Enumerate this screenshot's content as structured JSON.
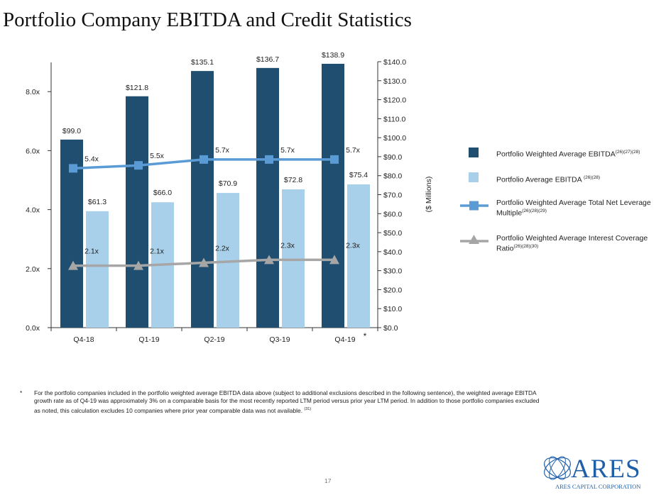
{
  "page": {
    "title": "Portfolio Company EBITDA and Credit Statistics",
    "page_number": "17"
  },
  "colors": {
    "dark_bar": "#1f4e70",
    "light_bar": "#a8d0ea",
    "leverage_line": "#5b9bd5",
    "coverage_line": "#a6a6a6"
  },
  "chart_data": {
    "type": "bar",
    "categories": [
      "Q4-18",
      "Q1-19",
      "Q2-19",
      "Q3-19",
      "Q4-19"
    ],
    "category_note": "*",
    "series": [
      {
        "name": "Portfolio Weighted Average EBITDA",
        "name_sup": "(26)(27)(28)",
        "kind": "bar",
        "axis": "right",
        "values": [
          99.0,
          121.8,
          135.1,
          136.7,
          138.9
        ],
        "labels": [
          "$99.0",
          "$121.8",
          "$135.1",
          "$136.7",
          "$138.9"
        ],
        "color": "#1f4e70"
      },
      {
        "name": "Portfolio Average EBITDA",
        "name_sup": "(26)(28)",
        "kind": "bar",
        "axis": "right",
        "values": [
          61.3,
          66.0,
          70.9,
          72.8,
          75.4
        ],
        "labels": [
          "$61.3",
          "$66.0",
          "$70.9",
          "$72.8",
          "$75.4"
        ],
        "color": "#a8d0ea"
      },
      {
        "name": "Portfolio Weighted Average Total Net Leverage Multiple",
        "name_line1": "Portfolio Weighted Average Total Net Leverage",
        "name_line2": "Multiple",
        "name_sup": "(26)(28)(29)",
        "kind": "line",
        "marker": "square",
        "axis": "left",
        "values": [
          5.4,
          5.5,
          5.7,
          5.7,
          5.7
        ],
        "labels": [
          "5.4x",
          "5.5x",
          "5.7x",
          "5.7x",
          "5.7x"
        ],
        "color": "#5b9bd5"
      },
      {
        "name": "Portfolio Weighted Average Interest Coverage Ratio",
        "name_line1": "Portfolio Weighted Average Interest Coverage",
        "name_line2": "Ratio",
        "name_sup": "(26)(28)(30)",
        "kind": "line",
        "marker": "triangle",
        "axis": "left",
        "values": [
          2.1,
          2.1,
          2.2,
          2.3,
          2.3
        ],
        "labels": [
          "2.1x",
          "2.1x",
          "2.2x",
          "2.3x",
          "2.3x"
        ],
        "color": "#a6a6a6"
      }
    ],
    "left_axis": {
      "min": 0,
      "max": 9,
      "ticks": [
        0,
        2,
        4,
        6,
        8
      ],
      "tick_labels": [
        "0.0x",
        "2.0x",
        "4.0x",
        "6.0x",
        "8.0x"
      ]
    },
    "right_axis": {
      "min": 0,
      "max": 140,
      "ticks": [
        0,
        10,
        20,
        30,
        40,
        50,
        60,
        70,
        80,
        90,
        100,
        110,
        120,
        130,
        140
      ],
      "tick_labels": [
        "$0.0",
        "$10.0",
        "$20.0",
        "$30.0",
        "$40.0",
        "$50.0",
        "$60.0",
        "$70.0",
        "$80.0",
        "$90.0",
        "$100.0",
        "$110.0",
        "$120.0",
        "$130.0",
        "$140.0"
      ],
      "label": "($ Millions)"
    },
    "grid": false,
    "legend_position": "right"
  },
  "footnote": {
    "marker": "*",
    "text": "For the portfolio companies included in the portfolio weighted average EBITDA data above (subject to additional exclusions described in the following sentence), the weighted average EBITDA growth rate as of Q4-19 was approximately 3% on a comparable basis for the most recently reported LTM period versus prior year LTM period. In addition to those portfolio companies excluded as noted, this calculation excludes 10 companies where prior year comparable data was not available.",
    "sup": "(31)"
  },
  "logo": {
    "word": "ARES",
    "subtitle": "ARES CAPITAL CORPORATION",
    "icon": "ares-swirl-icon"
  }
}
